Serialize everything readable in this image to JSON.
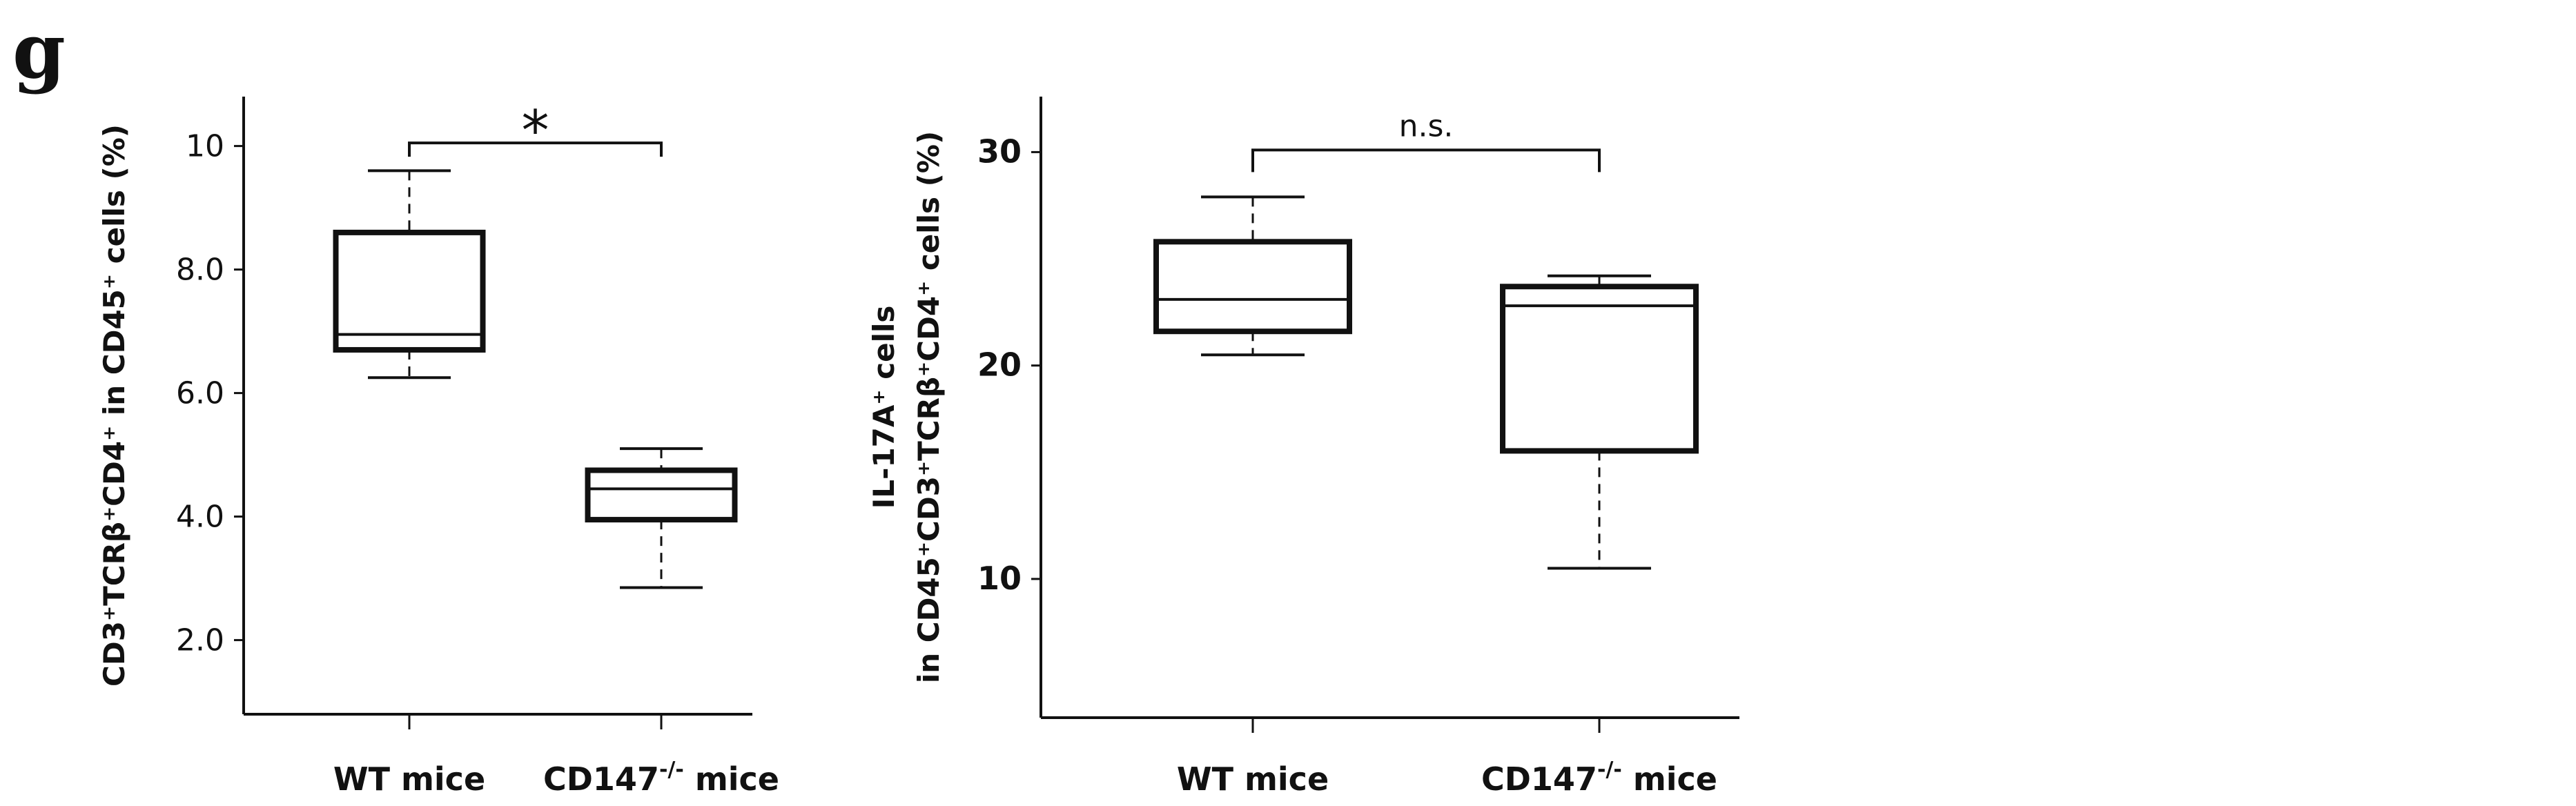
{
  "panel_label": "g",
  "chart_data": [
    {
      "type": "box",
      "ylabel": "CD3⁺TCRβ⁺CD4⁺ in CD45⁺ cells (%)",
      "ylabel_lines": [
        "CD3⁺TCRβ⁺CD4⁺ in CD45⁺ cells (%)"
      ],
      "ylim": [
        0.8,
        10.8
      ],
      "yticks": [
        2.0,
        4.0,
        6.0,
        8.0,
        10.0
      ],
      "ytick_labels": [
        "2.0",
        "4.0",
        "6.0",
        "8.0",
        "10"
      ],
      "ytick_bold": false,
      "categories": [
        "WT mice",
        "CD147-/- mice"
      ],
      "boxes": [
        {
          "category": "WT mice",
          "whisker_low": 6.25,
          "q1": 6.7,
          "median": 6.95,
          "q3": 8.6,
          "whisker_high": 9.6
        },
        {
          "category": "CD147-/- mice",
          "whisker_low": 2.85,
          "q1": 3.95,
          "median": 4.45,
          "q3": 4.75,
          "whisker_high": 5.1
        }
      ],
      "significance": {
        "label": "*",
        "between": [
          "WT mice",
          "CD147-/- mice"
        ],
        "y": 10.05
      }
    },
    {
      "type": "box",
      "ylabel": "IL-17A⁺ cells in CD45⁺CD3⁺TCRβ⁺CD4⁺ cells (%)",
      "ylabel_lines": [
        "IL-17A⁺ cells",
        "in CD45⁺CD3⁺TCRβ⁺CD4⁺ cells (%)"
      ],
      "ylim": [
        3.5,
        32.6
      ],
      "yticks": [
        10,
        20,
        30
      ],
      "ytick_labels": [
        "10",
        "20",
        "30"
      ],
      "ytick_bold": true,
      "categories": [
        "WT mice",
        "CD147-/- mice"
      ],
      "boxes": [
        {
          "category": "WT mice",
          "whisker_low": 20.5,
          "q1": 21.6,
          "median": 23.1,
          "q3": 25.8,
          "whisker_high": 27.9
        },
        {
          "category": "CD147-/- mice",
          "whisker_low": 10.5,
          "q1": 16.0,
          "median": 22.8,
          "q3": 23.7,
          "whisker_high": 24.2
        }
      ],
      "significance": {
        "label": "n.s.",
        "between": [
          "WT mice",
          "CD147-/- mice"
        ],
        "y": 30.1
      }
    }
  ]
}
